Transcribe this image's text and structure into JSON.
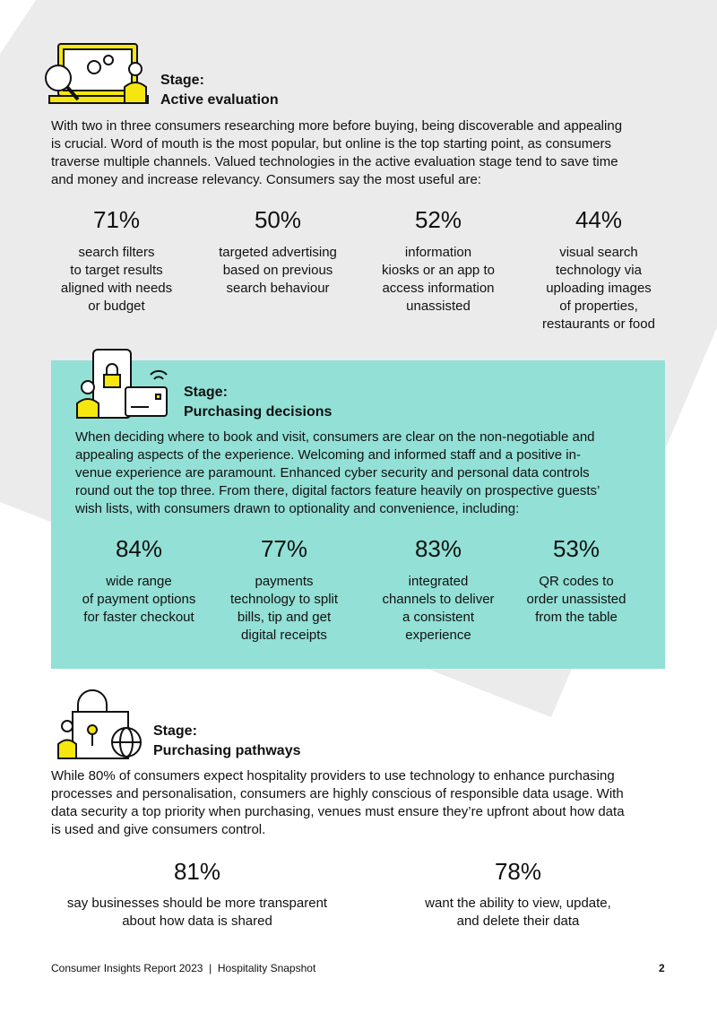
{
  "sections": [
    {
      "stage_label": "Stage:",
      "stage_name": "Active evaluation",
      "body": [
        "With two in three consumers researching more before buying, being discoverable and appealing",
        "is crucial. Word of mouth is the most popular, but online is the top starting point, as consumers",
        "traverse multiple channels. Valued technologies in the active evaluation stage tend to save time",
        "and money and increase relevancy. Consumers say the most useful are:"
      ],
      "stats": [
        {
          "value": "71%",
          "description": [
            "search filters",
            "to target results",
            "aligned with needs",
            "or budget"
          ]
        },
        {
          "value": "50%",
          "description": [
            "targeted advertising",
            "based on previous",
            "search behaviour"
          ]
        },
        {
          "value": "52%",
          "description": [
            "information",
            "kiosks or an app to",
            "access information",
            "unassisted"
          ]
        },
        {
          "value": "44%",
          "description": [
            "visual search",
            "technology via",
            "uploading images",
            "of properties,",
            "restaurants or food"
          ]
        }
      ]
    },
    {
      "stage_label": "Stage:",
      "stage_name": "Purchasing decisions",
      "body": [
        "When deciding where to book and visit, consumers are clear on the non-negotiable and",
        "appealing aspects of the experience. Welcoming and informed staff and a positive in-",
        "venue experience are paramount. Enhanced cyber security and personal data controls",
        "round out the top three. From there, digital factors feature heavily on prospective guests’",
        "wish lists, with consumers drawn to optionality and convenience, including:"
      ],
      "stats": [
        {
          "value": "84%",
          "description": [
            "wide range",
            "of payment options",
            "for faster checkout"
          ]
        },
        {
          "value": "77%",
          "description": [
            "payments",
            "technology to split",
            "bills, tip and get",
            "digital receipts"
          ]
        },
        {
          "value": "83%",
          "description": [
            "integrated",
            "channels to deliver",
            "a consistent",
            "experience"
          ]
        },
        {
          "value": "53%",
          "description": [
            "QR codes to",
            "order unassisted",
            "from the table"
          ]
        }
      ]
    },
    {
      "stage_label": "Stage:",
      "stage_name": "Purchasing pathways",
      "body": [
        "While 80% of consumers expect hospitality providers to use technology to enhance purchasing",
        "processes and personalisation, consumers are highly conscious of responsible data usage. With",
        "data security a top priority when purchasing, venues must ensure they’re upfront about how data",
        "is used and give consumers control."
      ],
      "stats": [
        {
          "value": "81%",
          "description": [
            "say businesses should be more transparent",
            "about how data is shared"
          ]
        },
        {
          "value": "78%",
          "description": [
            "want the ability to view, update,",
            "and delete their data"
          ]
        }
      ]
    }
  ],
  "footer": {
    "text": "Consumer Insights Report 2023  |  Hospitality Snapshot",
    "page": "2"
  }
}
